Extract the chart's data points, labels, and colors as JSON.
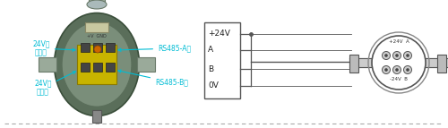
{
  "bg_color": "#ffffff",
  "dash_color": "#aaaaaa",
  "line_color": "#555555",
  "cyan": "#00bcd4",
  "body_color": "#5a6e5a",
  "body_edge": "#3a4e3a",
  "face_color": "#7a8e7a",
  "tb_color": "#c8b400",
  "terminal_labels": [
    "+24V",
    "A",
    "B",
    "0V"
  ],
  "label_top_left": "24V电\n源正极",
  "label_bot_left": "24V电\n源负极",
  "label_top_right": "RS485-A极",
  "label_bot_right": "RS485-B极",
  "sensor_label_top": "+24V  A",
  "sensor_label_bot": "-24V  B"
}
